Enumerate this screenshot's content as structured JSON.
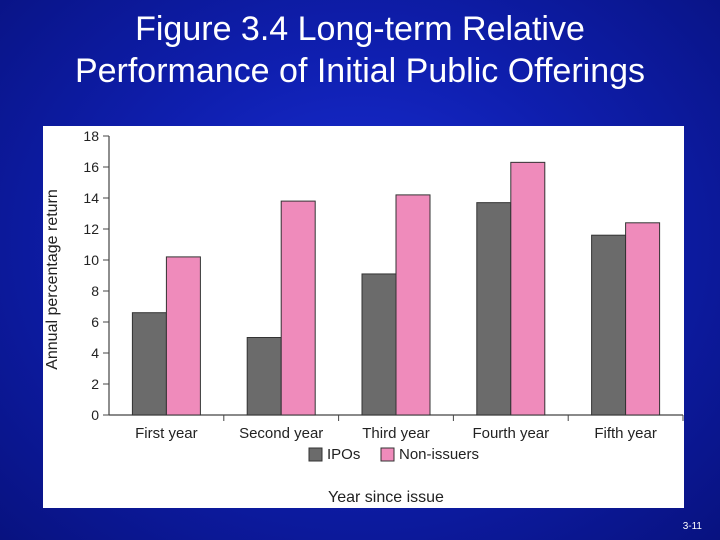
{
  "slide": {
    "title_line1": "Figure 3.4 Long-term Relative",
    "title_line2": "Performance of Initial Public Offerings",
    "slide_number": "3-11",
    "background_color": "#0f1fb0"
  },
  "chart_data": {
    "type": "bar",
    "title": "",
    "xlabel": "Year since issue",
    "ylabel": "Annual percentage return",
    "ylim": [
      0,
      18
    ],
    "yticks": [
      0,
      2,
      4,
      6,
      8,
      10,
      12,
      14,
      16,
      18
    ],
    "categories": [
      "First year",
      "Second year",
      "Third year",
      "Fourth year",
      "Fifth year"
    ],
    "series": [
      {
        "name": "IPOs",
        "color": "#6b6b6b",
        "values": [
          6.6,
          5.0,
          9.1,
          13.7,
          11.6
        ]
      },
      {
        "name": "Non-issuers",
        "color": "#ef8bbb",
        "values": [
          10.2,
          13.8,
          14.2,
          16.3,
          12.4
        ]
      }
    ],
    "grid": false,
    "legend_position": "bottom"
  }
}
